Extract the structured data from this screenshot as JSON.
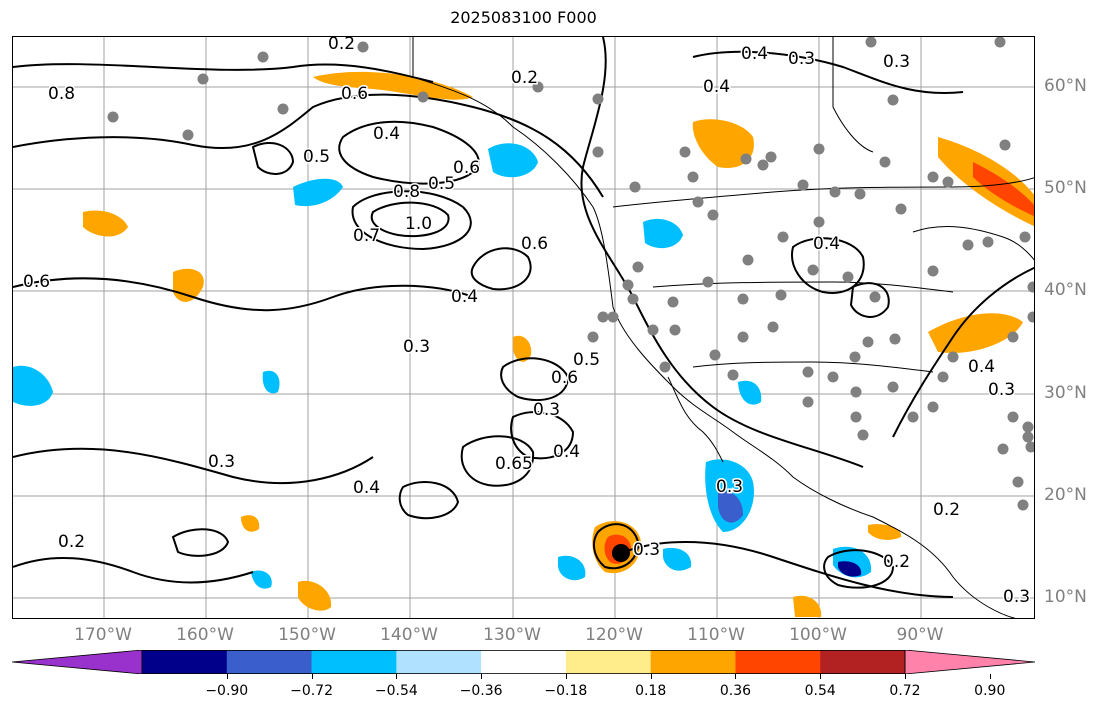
{
  "title": "2025083100 F000",
  "lon_labels": [
    "170°W",
    "160°W",
    "150°W",
    "140°W",
    "130°W",
    "120°W",
    "110°W",
    "100°W",
    "90°W"
  ],
  "lat_labels": [
    "60°N",
    "50°N",
    "40°N",
    "30°N",
    "20°N",
    "10°N"
  ],
  "contour_labels": [
    "0.2",
    "0.4",
    "0.3",
    "0.2",
    "0.3",
    "0.4",
    "0.6",
    "0.4",
    "0.5",
    "0.6",
    "0.8",
    "1.0",
    "0.7",
    "0.6",
    "0.4",
    "0.3",
    "0.5",
    "0.6",
    "0.3",
    "0.4",
    "0.65",
    "0.3",
    "0.4",
    "0.3",
    "0.2",
    "0.3",
    "0.2",
    "0.2",
    "0.3",
    "0.4",
    "0.3",
    "0.4",
    "0.8",
    "0.6",
    "0.5"
  ],
  "colorbar": {
    "ticks": [
      "−0.90",
      "−0.72",
      "−0.54",
      "−0.36",
      "−0.18",
      "0.18",
      "0.36",
      "0.54",
      "0.72",
      "0.90"
    ],
    "colors": [
      "#9932CC",
      "#00008B",
      "#3A5FCD",
      "#00BFFF",
      "#B0E2FF",
      "#FFFFFF",
      "#FFEC8B",
      "#FFA500",
      "#FF4500",
      "#B22222",
      "#FF82AB"
    ]
  },
  "storm_marker_color": "#000000",
  "station_color": "#808080"
}
